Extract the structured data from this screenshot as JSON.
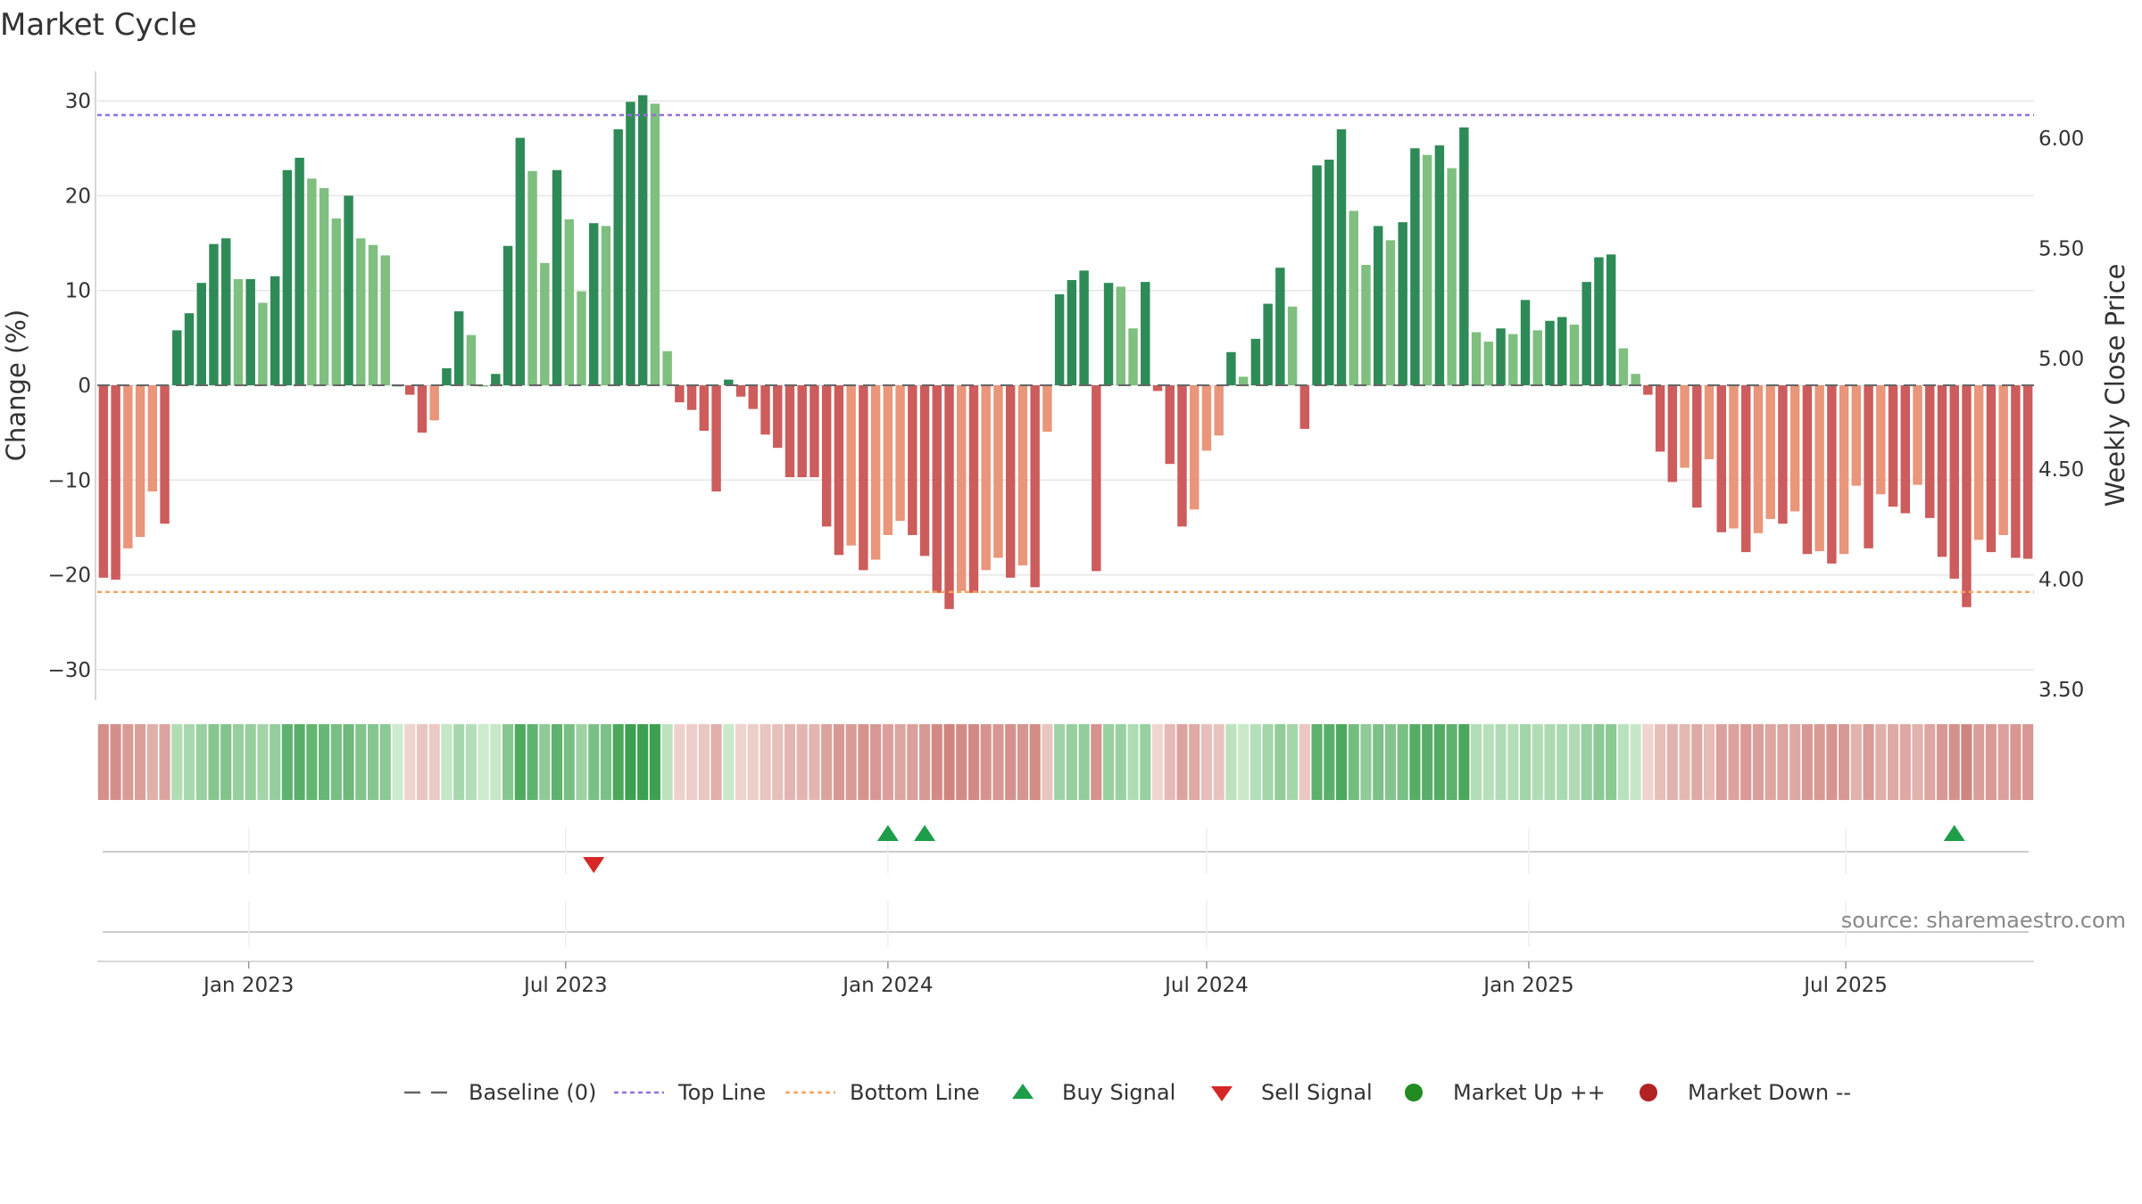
{
  "chart_data": {
    "type": "bar",
    "title": "Market Cycle",
    "ylabel": "Change (%)",
    "y2label": "Weekly Close Price",
    "ylim": [
      -33,
      33
    ],
    "y2lim": [
      3.5,
      6.25
    ],
    "yticks": [
      -30,
      -20,
      -10,
      0,
      10,
      20,
      30
    ],
    "y2ticks": [
      "3.50",
      "4.00",
      "4.50",
      "5.00",
      "5.50",
      "6.00"
    ],
    "y2tick_values": [
      3.5,
      4.0,
      4.5,
      5.0,
      5.5,
      6.0
    ],
    "x_start": "2022-10-10",
    "week_days": 7,
    "xticks": [
      {
        "label": "Jan 2023",
        "date": "2023-01-01"
      },
      {
        "label": "Jul 2023",
        "date": "2023-07-01"
      },
      {
        "label": "Jan 2024",
        "date": "2024-01-01"
      },
      {
        "label": "Jul 2024",
        "date": "2024-07-01"
      },
      {
        "label": "Jan 2025",
        "date": "2025-01-01"
      },
      {
        "label": "Jul 2025",
        "date": "2025-07-01"
      }
    ],
    "top_line": 28.5,
    "bottom_line": -21.8,
    "grid": true,
    "legend_position": "bottom-center",
    "values": [
      -20.3,
      -20.5,
      -17.2,
      -16,
      -11.2,
      -14.6,
      5.8,
      7.6,
      10.8,
      14.9,
      15.5,
      11.2,
      11.2,
      8.7,
      11.5,
      22.7,
      24,
      21.8,
      20.8,
      17.6,
      20,
      15.5,
      14.8,
      13.7,
      0,
      -1,
      -5,
      -3.7,
      1.8,
      7.8,
      5.3,
      0,
      1.2,
      14.7,
      26.1,
      22.6,
      12.9,
      22.7,
      17.5,
      9.9,
      17.1,
      16.8,
      27,
      29.9,
      30.6,
      29.7,
      3.6,
      -1.8,
      -2.6,
      -4.8,
      -11.2,
      0.6,
      -1.2,
      -2.5,
      -5.2,
      -6.6,
      -9.7,
      -9.7,
      -9.7,
      -14.9,
      -17.9,
      -16.9,
      -19.5,
      -18.4,
      -15.8,
      -14.3,
      -15.8,
      -18,
      -21.9,
      -23.6,
      -21.7,
      -21.9,
      -19.5,
      -18.2,
      -20.3,
      -19,
      -21.3,
      -4.9,
      9.6,
      11.1,
      12.1,
      -19.6,
      10.8,
      10.4,
      6,
      10.9,
      -0.6,
      -8.3,
      -14.9,
      -13.1,
      -6.9,
      -5.3,
      3.5,
      0.9,
      4.9,
      8.6,
      12.4,
      8.3,
      -4.6,
      23.2,
      23.8,
      27,
      18.4,
      12.7,
      16.8,
      15.3,
      17.2,
      25,
      24.3,
      25.3,
      22.9,
      27.2,
      5.6,
      4.6,
      6,
      5.4,
      9,
      5.8,
      6.8,
      7.2,
      6.4,
      10.9,
      13.5,
      13.8,
      3.9,
      1.2,
      -1,
      -7,
      -10.2,
      -8.7,
      -12.9,
      -7.8,
      -15.5,
      -15.1,
      -17.6,
      -15.6,
      -14.1,
      -14.6,
      -13.3,
      -17.8,
      -17.5,
      -18.8,
      -17.8,
      -10.6,
      -17.2,
      -11.5,
      -12.8,
      -13.5,
      -10.5,
      -14,
      -18.1,
      -20.4,
      -23.4,
      -16.3,
      -17.6,
      -15.8,
      -18.2,
      -18.3
    ],
    "buy_signals": [
      "2024-01-01",
      "2024-01-22",
      "2025-09-01"
    ],
    "sell_signals": [
      "2023-07-17"
    ],
    "legend": [
      {
        "label": "Baseline (0)",
        "symbol": "baseline"
      },
      {
        "label": "Top Line",
        "symbol": "topline"
      },
      {
        "label": "Bottom Line",
        "symbol": "bottomline"
      },
      {
        "label": "Buy Signal",
        "symbol": "buy"
      },
      {
        "label": "Sell Signal",
        "symbol": "sell"
      },
      {
        "label": "Market Up ++",
        "symbol": "up"
      },
      {
        "label": "Market Down --",
        "symbol": "down"
      }
    ],
    "source": "source: sharemaestro.com"
  },
  "colors": {
    "strong_up": "#2e8b57",
    "weak_up": "#7fbf7f",
    "strong_down": "#cd5c5c",
    "weak_down": "#e9967a",
    "top_line": "#9370db",
    "bottom_line": "#f4a460",
    "baseline": "#666666",
    "buy": "#1e9e4a",
    "sell": "#d62728",
    "market_up": "#228b22",
    "market_down": "#b22222",
    "grid": "#e6e6e6"
  }
}
